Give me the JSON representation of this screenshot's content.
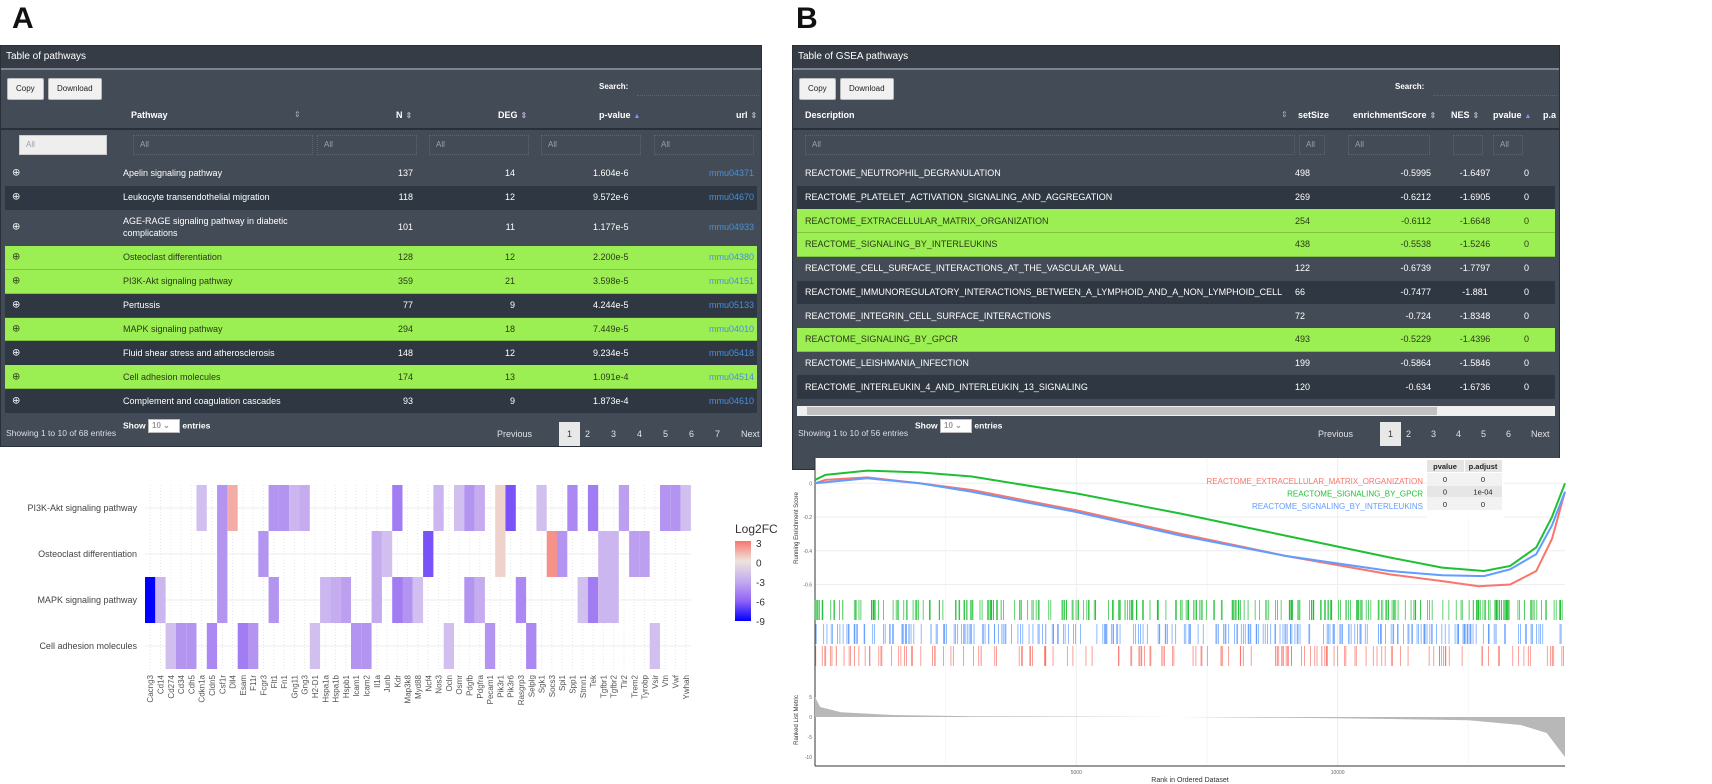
{
  "panels": {
    "a": "A",
    "b": "B"
  },
  "tableA": {
    "title": "Table of pathways",
    "copy": "Copy",
    "download": "Download",
    "search_label": "Search:",
    "columns": [
      "Pathway",
      "N",
      "DEG",
      "p-value",
      "url"
    ],
    "filter_placeholder": "All",
    "rows": [
      {
        "pathway": "Apelin signaling pathway",
        "n": "137",
        "deg": "14",
        "p": "1.604e-6",
        "url": "mmu04371",
        "hl": false
      },
      {
        "pathway": "Leukocyte transendothelial migration",
        "n": "118",
        "deg": "12",
        "p": "9.572e-6",
        "url": "mmu04670",
        "hl": false
      },
      {
        "pathway": "AGE-RAGE signaling pathway in diabetic complications",
        "n": "101",
        "deg": "11",
        "p": "1.177e-5",
        "url": "mmu04933",
        "hl": false
      },
      {
        "pathway": "Osteoclast differentiation",
        "n": "128",
        "deg": "12",
        "p": "2.200e-5",
        "url": "mmu04380",
        "hl": true
      },
      {
        "pathway": "PI3K-Akt signaling pathway",
        "n": "359",
        "deg": "21",
        "p": "3.598e-5",
        "url": "mmu04151",
        "hl": true
      },
      {
        "pathway": "Pertussis",
        "n": "77",
        "deg": "9",
        "p": "4.244e-5",
        "url": "mmu05133",
        "hl": false
      },
      {
        "pathway": "MAPK signaling pathway",
        "n": "294",
        "deg": "18",
        "p": "7.449e-5",
        "url": "mmu04010",
        "hl": true
      },
      {
        "pathway": "Fluid shear stress and atherosclerosis",
        "n": "148",
        "deg": "12",
        "p": "9.234e-5",
        "url": "mmu05418",
        "hl": false
      },
      {
        "pathway": "Cell adhesion molecules",
        "n": "174",
        "deg": "13",
        "p": "1.091e-4",
        "url": "mmu04514",
        "hl": true
      },
      {
        "pathway": "Complement and coagulation cascades",
        "n": "93",
        "deg": "9",
        "p": "1.873e-4",
        "url": "mmu04610",
        "hl": false
      }
    ],
    "info": "Showing 1 to 10 of 68 entries",
    "show": "Show",
    "entries": "entries",
    "page_size": "10",
    "pagination": [
      "Previous",
      "1",
      "2",
      "3",
      "4",
      "5",
      "6",
      "7",
      "Next"
    ]
  },
  "tableB": {
    "title": "Table of GSEA pathways",
    "copy": "Copy",
    "download": "Download",
    "search_label": "Search:",
    "columns": [
      "Description",
      "setSize",
      "enrichmentScore",
      "NES",
      "pvalue",
      "p.a"
    ],
    "filter_placeholder": "All",
    "rows": [
      {
        "d": "REACTOME_NEUTROPHIL_DEGRANULATION",
        "s": "498",
        "es": "-0.5995",
        "nes": "-1.6497",
        "p": "0",
        "hl": false
      },
      {
        "d": "REACTOME_PLATELET_ACTIVATION_SIGNALING_AND_AGGREGATION",
        "s": "269",
        "es": "-0.6212",
        "nes": "-1.6905",
        "p": "0",
        "hl": false
      },
      {
        "d": "REACTOME_EXTRACELLULAR_MATRIX_ORGANIZATION",
        "s": "254",
        "es": "-0.6112",
        "nes": "-1.6648",
        "p": "0",
        "hl": true
      },
      {
        "d": "REACTOME_SIGNALING_BY_INTERLEUKINS",
        "s": "438",
        "es": "-0.5538",
        "nes": "-1.5246",
        "p": "0",
        "hl": true
      },
      {
        "d": "REACTOME_CELL_SURFACE_INTERACTIONS_AT_THE_VASCULAR_WALL",
        "s": "122",
        "es": "-0.6739",
        "nes": "-1.7797",
        "p": "0",
        "hl": false
      },
      {
        "d": "REACTOME_IMMUNOREGULATORY_INTERACTIONS_BETWEEN_A_LYMPHOID_AND_A_NON_LYMPHOID_CELL",
        "s": "66",
        "es": "-0.7477",
        "nes": "-1.881",
        "p": "0",
        "hl": false
      },
      {
        "d": "REACTOME_INTEGRIN_CELL_SURFACE_INTERACTIONS",
        "s": "72",
        "es": "-0.724",
        "nes": "-1.8348",
        "p": "0",
        "hl": false
      },
      {
        "d": "REACTOME_SIGNALING_BY_GPCR",
        "s": "493",
        "es": "-0.5229",
        "nes": "-1.4396",
        "p": "0",
        "hl": true
      },
      {
        "d": "REACTOME_LEISHMANIA_INFECTION",
        "s": "199",
        "es": "-0.5864",
        "nes": "-1.5846",
        "p": "0",
        "hl": false
      },
      {
        "d": "REACTOME_INTERLEUKIN_4_AND_INTERLEUKIN_13_SIGNALING",
        "s": "120",
        "es": "-0.634",
        "nes": "-1.6736",
        "p": "0",
        "hl": false
      }
    ],
    "info": "Showing 1 to 10 of 56 entries",
    "show": "Show",
    "entries": "entries",
    "page_size": "10",
    "pagination": [
      "Previous",
      "1",
      "2",
      "3",
      "4",
      "5",
      "6",
      "Next"
    ]
  },
  "colors": {
    "panel": "#434b56",
    "row_dark": "#2f3742",
    "highlight": "#9bef52",
    "link": "#4a8fd8"
  },
  "chart_data": [
    {
      "type": "heatmap",
      "legend_title": "Log2FC",
      "legend_ticks": [
        3,
        0,
        -3,
        -6,
        -9
      ],
      "range": [
        -9,
        3
      ],
      "rows": [
        "PI3K-Akt signaling pathway",
        "Osteoclast differentiation",
        "MAPK signaling pathway",
        "Cell adhesion molecules"
      ],
      "genes": [
        "Cacng3",
        "Cd14",
        "Cd274",
        "Cd34",
        "Cdh5",
        "Cdkn1a",
        "Cldn5",
        "Csf1r",
        "Dll4",
        "Esam",
        "F11r",
        "Fcgr3",
        "Flt1",
        "Fn1",
        "Gng11",
        "Gng3",
        "H2-D1",
        "Hspa1a",
        "Hspa1b",
        "Hspb1",
        "Icam1",
        "Icam2",
        "Il1a",
        "Junb",
        "Kdr",
        "Map3k8",
        "Myd88",
        "Ncf4",
        "Nos3",
        "Ocln",
        "Osmr",
        "Pdgfb",
        "Pdgfra",
        "Pecam1",
        "Pik3r1",
        "Pik3r6",
        "Rasgrp3",
        "Selplg",
        "Sgk1",
        "Socs3",
        "Spi1",
        "Spp1",
        "Stmn1",
        "Tek",
        "Tgfbr1",
        "Tgfbr2",
        "Tlr2",
        "Trem2",
        "Tyrobp",
        "Vsir",
        "Vtn",
        "Vwf",
        "Ywhah"
      ],
      "values": {
        "PI3K-Akt signaling pathway": {
          "Cdkn1a": -2,
          "Csf1r": -4,
          "Dll4": 1.5,
          "Flt1": -4,
          "Fn1": -4,
          "Gng11": -2.5,
          "Gng3": -3,
          "Kdr": -5,
          "Nos3": -2.5,
          "Osmr": -2,
          "Pdgfb": -4,
          "Pdgfra": -3,
          "Pik3r1": 0.5,
          "Pik3r6": -6.5,
          "Sgk1": -2,
          "Spp1": -4.5,
          "Tek": -5,
          "Tlr2": -3.5,
          "Vtn": -4,
          "Vwf": -4,
          "Ywhah": -2
        },
        "Osteoclast differentiation": {
          "Csf1r": -4,
          "Fcgr3": -4,
          "Il1a": -3,
          "Junb": -2,
          "Ncf4": -6.5,
          "Pik3r1": 0.5,
          "Socs3": 2.2,
          "Spi1": -4,
          "Tgfbr1": -2.5,
          "Tgfbr2": -2.5,
          "Trem2": -3.5,
          "Tyrobp": -3.5
        },
        "MAPK signaling pathway": {
          "Cacng3": -9,
          "Cd14": -2.5,
          "Csf1r": -4,
          "Flt1": -4,
          "Hspa1a": -2.5,
          "Hspa1b": -3,
          "Hspb1": -3.5,
          "Il1a": -3,
          "Kdr": -5,
          "Map3k8": -4,
          "Myd88": -2,
          "Pdgfb": -4,
          "Pdgfra": -3,
          "Rasgrp3": -4.5,
          "Stmn1": -2,
          "Tek": -5,
          "Tgfbr1": -2.5,
          "Tgfbr2": -2.5
        },
        "Cell adhesion molecules": {
          "Cd274": -2,
          "Cd34": -4,
          "Cdh5": -4,
          "Cldn5": -4.5,
          "Esam": -5,
          "F11r": -4,
          "H2-D1": -2,
          "Icam1": -4,
          "Icam2": -4,
          "Ocln": -2,
          "Pecam1": -4,
          "Selplg": -4.5,
          "Vsir": -2
        }
      }
    },
    {
      "type": "line",
      "ylabel": "Running Enrichment Score",
      "xlabel": "Rank in Ordered Dataset",
      "xticks": [
        5000,
        10000
      ],
      "yticks": [
        0.0,
        -0.2,
        -0.4,
        -0.6
      ],
      "xlim": [
        0,
        14350
      ],
      "ylim": [
        -0.68,
        0.15
      ],
      "series": [
        {
          "name": "REACTOME_EXTRACELLULAR_MATRIX_ORGANIZATION",
          "color": "#f8766d",
          "setSize": 254,
          "pvalue": "0",
          "padjust": "0",
          "points": [
            [
              0,
              0
            ],
            [
              200,
              0.02
            ],
            [
              1000,
              0.035
            ],
            [
              2000,
              0.0
            ],
            [
              3000,
              -0.04
            ],
            [
              5000,
              -0.16
            ],
            [
              7000,
              -0.3
            ],
            [
              9000,
              -0.43
            ],
            [
              11000,
              -0.54
            ],
            [
              12000,
              -0.58
            ],
            [
              12700,
              -0.61
            ],
            [
              13300,
              -0.6
            ],
            [
              13800,
              -0.52
            ],
            [
              14100,
              -0.33
            ],
            [
              14350,
              -0.05
            ]
          ]
        },
        {
          "name": "REACTOME_SIGNALING_BY_GPCR",
          "color": "#1fbf35",
          "setSize": 493,
          "pvalue": "0",
          "padjust": "1e-04",
          "points": [
            [
              0,
              0.02
            ],
            [
              200,
              0.05
            ],
            [
              1000,
              0.075
            ],
            [
              2000,
              0.065
            ],
            [
              3000,
              0.04
            ],
            [
              5000,
              -0.06
            ],
            [
              7000,
              -0.18
            ],
            [
              9000,
              -0.31
            ],
            [
              11000,
              -0.44
            ],
            [
              12000,
              -0.5
            ],
            [
              12800,
              -0.52
            ],
            [
              13300,
              -0.49
            ],
            [
              13800,
              -0.38
            ],
            [
              14100,
              -0.2
            ],
            [
              14350,
              0
            ]
          ]
        },
        {
          "name": "REACTOME_SIGNALING_BY_INTERLEUKINS",
          "color": "#619cff",
          "setSize": 438,
          "pvalue": "0",
          "padjust": "0",
          "points": [
            [
              0,
              0
            ],
            [
              1000,
              0.03
            ],
            [
              2000,
              0.0
            ],
            [
              3000,
              -0.05
            ],
            [
              5000,
              -0.17
            ],
            [
              7000,
              -0.31
            ],
            [
              9000,
              -0.43
            ],
            [
              11000,
              -0.52
            ],
            [
              12000,
              -0.545
            ],
            [
              12800,
              -0.55
            ],
            [
              13300,
              -0.51
            ],
            [
              13800,
              -0.42
            ],
            [
              14100,
              -0.25
            ],
            [
              14350,
              -0.05
            ]
          ]
        }
      ],
      "legend_table_headers": [
        "pvalue",
        "p.adjust"
      ],
      "metric": {
        "ylabel": "Ranked List Metric",
        "yticks": [
          5,
          0,
          -5,
          -10
        ],
        "points": [
          [
            0,
            5
          ],
          [
            100,
            2.5
          ],
          [
            500,
            1.2
          ],
          [
            1500,
            0.5
          ],
          [
            3000,
            0.2
          ],
          [
            7000,
            0
          ],
          [
            10000,
            -0.3
          ],
          [
            12500,
            -0.8
          ],
          [
            13500,
            -2
          ],
          [
            14000,
            -4
          ],
          [
            14350,
            -10
          ]
        ]
      }
    }
  ]
}
